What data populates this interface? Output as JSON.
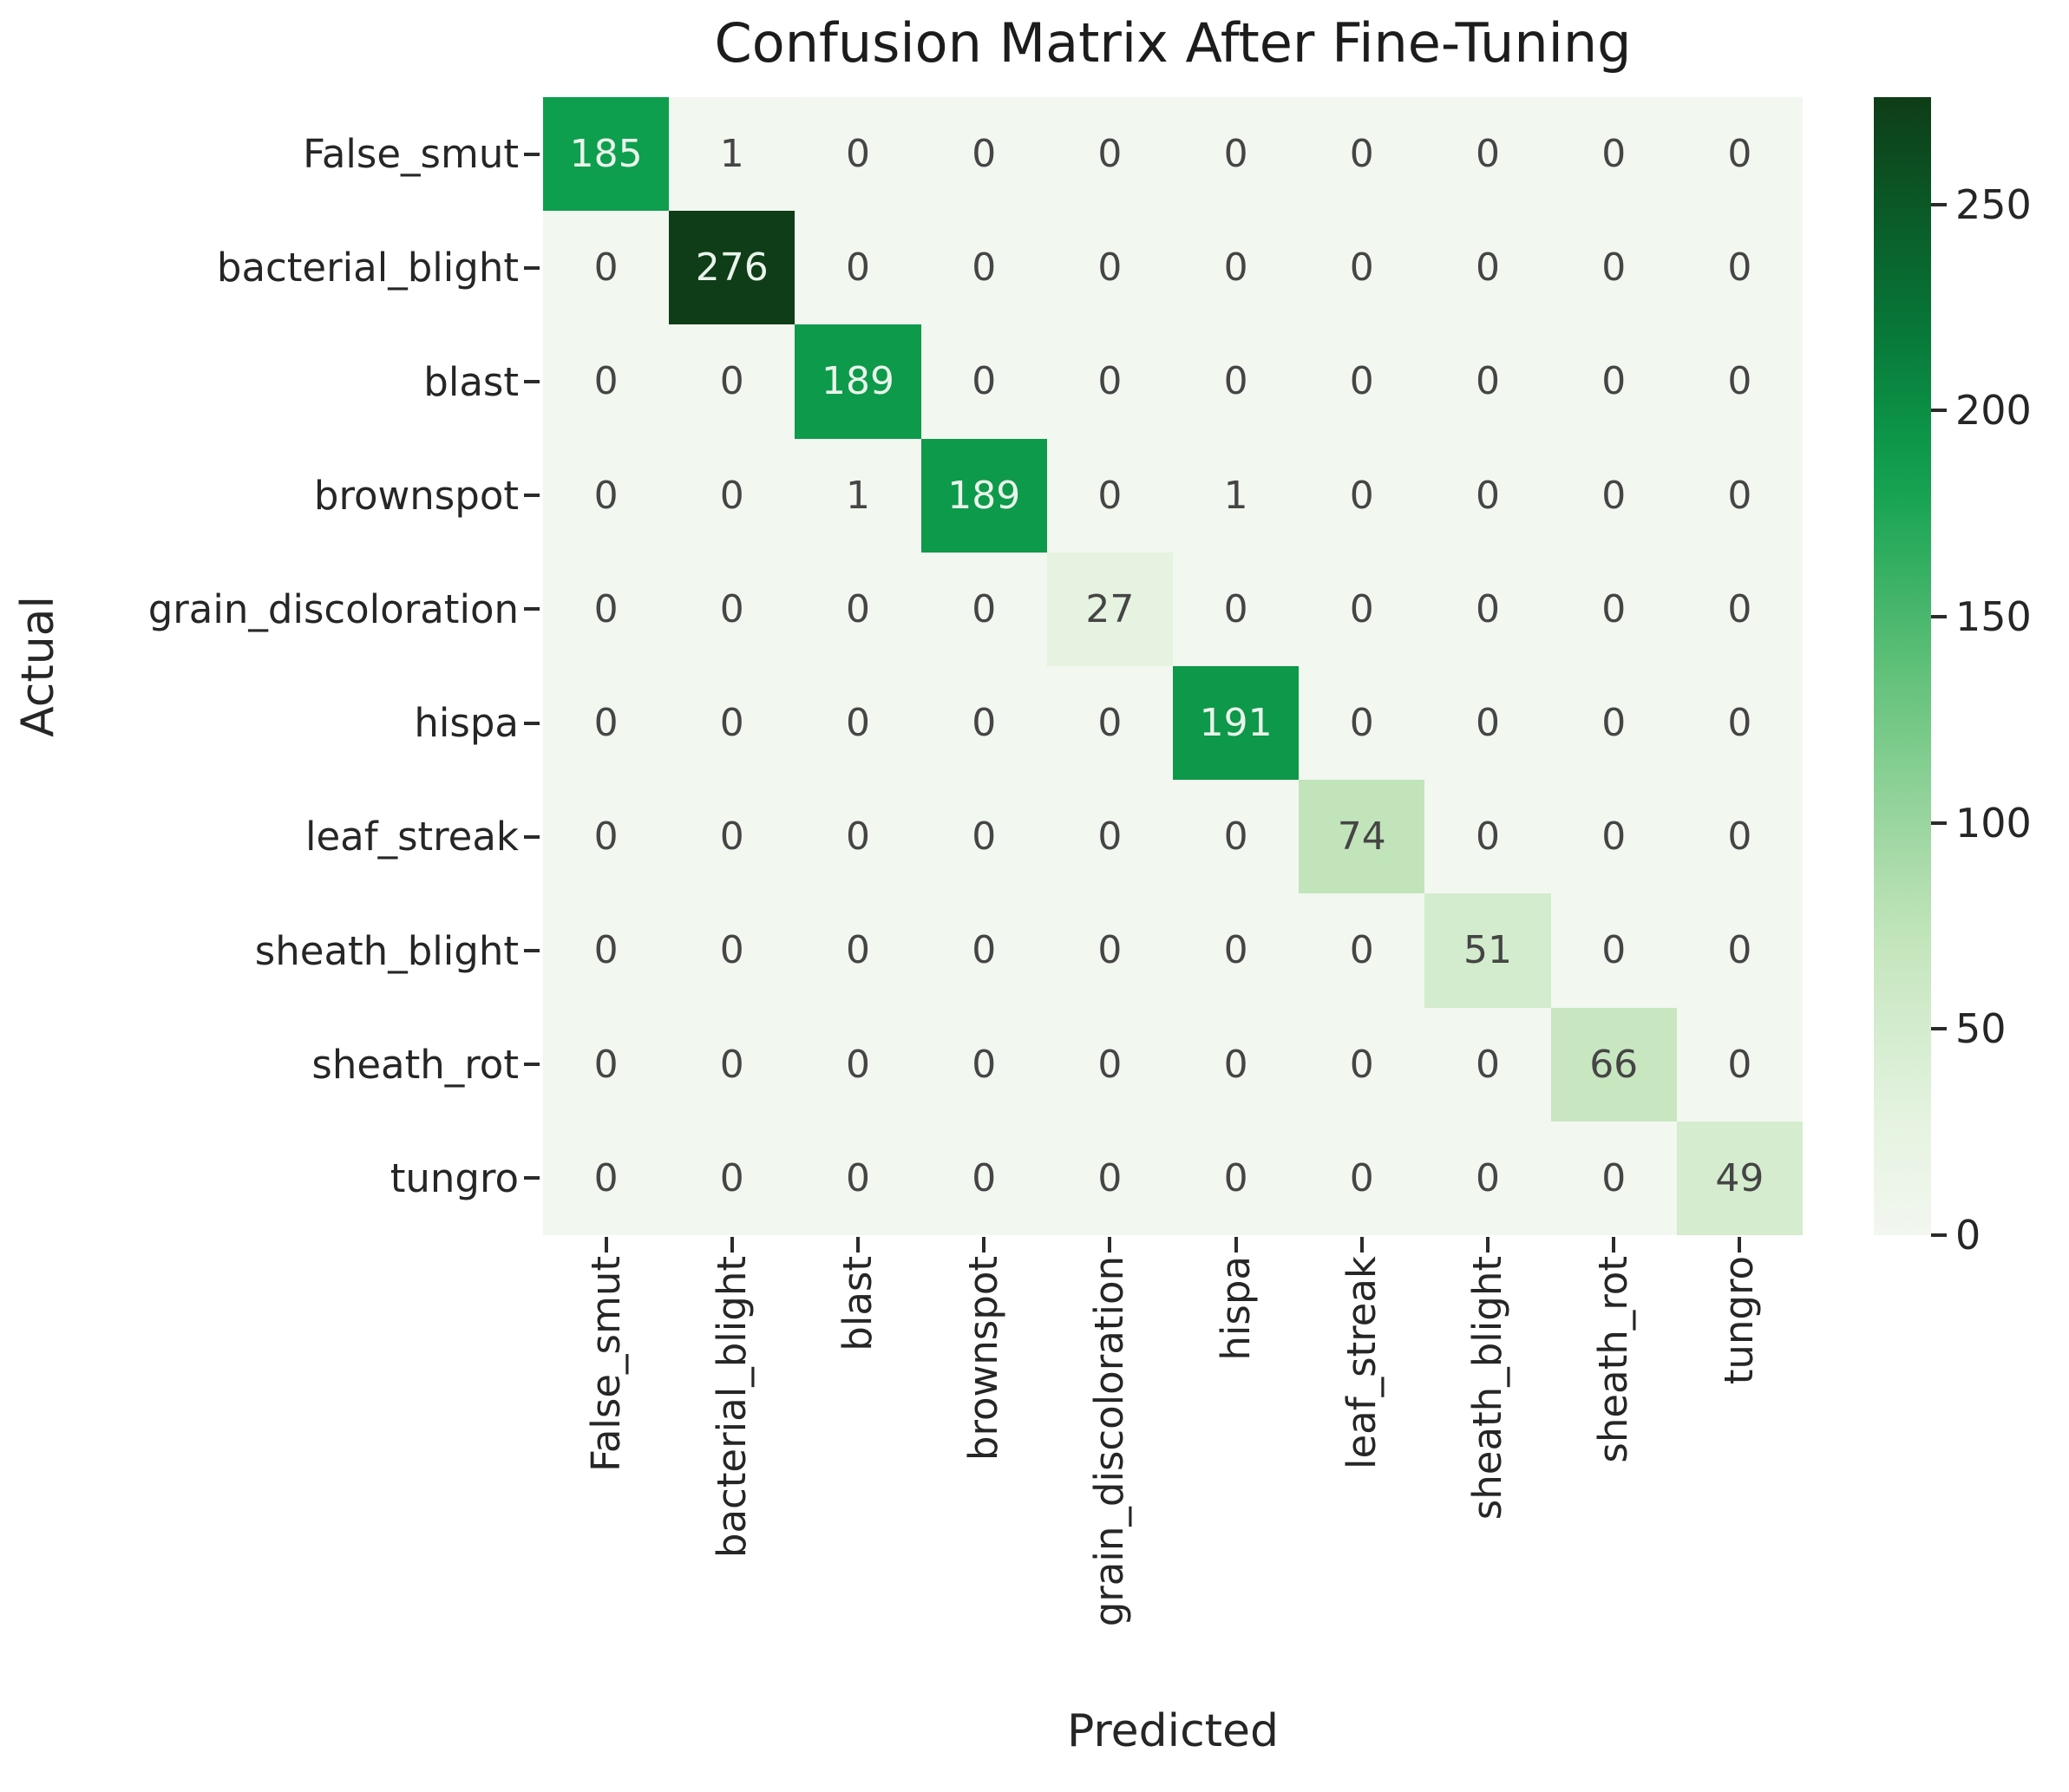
{
  "chart_data": {
    "type": "heatmap",
    "title": "Confusion Matrix After Fine-Tuning",
    "xlabel": "Predicted",
    "ylabel": "Actual",
    "x_categories": [
      "False_smut",
      "bacterial_blight",
      "blast",
      "brownspot",
      "grain_discoloration",
      "hispa",
      "leaf_streak",
      "sheath_blight",
      "sheath_rot",
      "tungro"
    ],
    "y_categories": [
      "False_smut",
      "bacterial_blight",
      "blast",
      "brownspot",
      "grain_discoloration",
      "hispa",
      "leaf_streak",
      "sheath_blight",
      "sheath_rot",
      "tungro"
    ],
    "matrix": [
      [
        185,
        1,
        0,
        0,
        0,
        0,
        0,
        0,
        0,
        0
      ],
      [
        0,
        276,
        0,
        0,
        0,
        0,
        0,
        0,
        0,
        0
      ],
      [
        0,
        0,
        189,
        0,
        0,
        0,
        0,
        0,
        0,
        0
      ],
      [
        0,
        0,
        1,
        189,
        0,
        1,
        0,
        0,
        0,
        0
      ],
      [
        0,
        0,
        0,
        0,
        27,
        0,
        0,
        0,
        0,
        0
      ],
      [
        0,
        0,
        0,
        0,
        0,
        191,
        0,
        0,
        0,
        0
      ],
      [
        0,
        0,
        0,
        0,
        0,
        0,
        74,
        0,
        0,
        0
      ],
      [
        0,
        0,
        0,
        0,
        0,
        0,
        0,
        51,
        0,
        0
      ],
      [
        0,
        0,
        0,
        0,
        0,
        0,
        0,
        0,
        66,
        0
      ],
      [
        0,
        0,
        0,
        0,
        0,
        0,
        0,
        0,
        0,
        49
      ]
    ],
    "vmin": 0,
    "vmax": 276,
    "colormap": "Greens",
    "annotated": true,
    "grid": false,
    "legend_position": "colorbar-right",
    "colorbar_ticks": [
      0,
      50,
      100,
      150,
      200,
      250
    ]
  },
  "colors": {
    "background": "#ffffff",
    "tick_text": "#262626",
    "cell_text_dark": "#454545",
    "cell_text_light": "#eaf4eb",
    "cmap_stops": [
      {
        "t": 0.0,
        "hex": "#f2f7f0"
      },
      {
        "t": 0.1,
        "hex": "#e5f3e0"
      },
      {
        "t": 0.27,
        "hex": "#c1e4ba"
      },
      {
        "t": 0.5,
        "hex": "#5fc078"
      },
      {
        "t": 0.67,
        "hex": "#0e9f4e"
      },
      {
        "t": 0.8,
        "hex": "#087637"
      },
      {
        "t": 1.0,
        "hex": "#0e3d17"
      }
    ]
  }
}
